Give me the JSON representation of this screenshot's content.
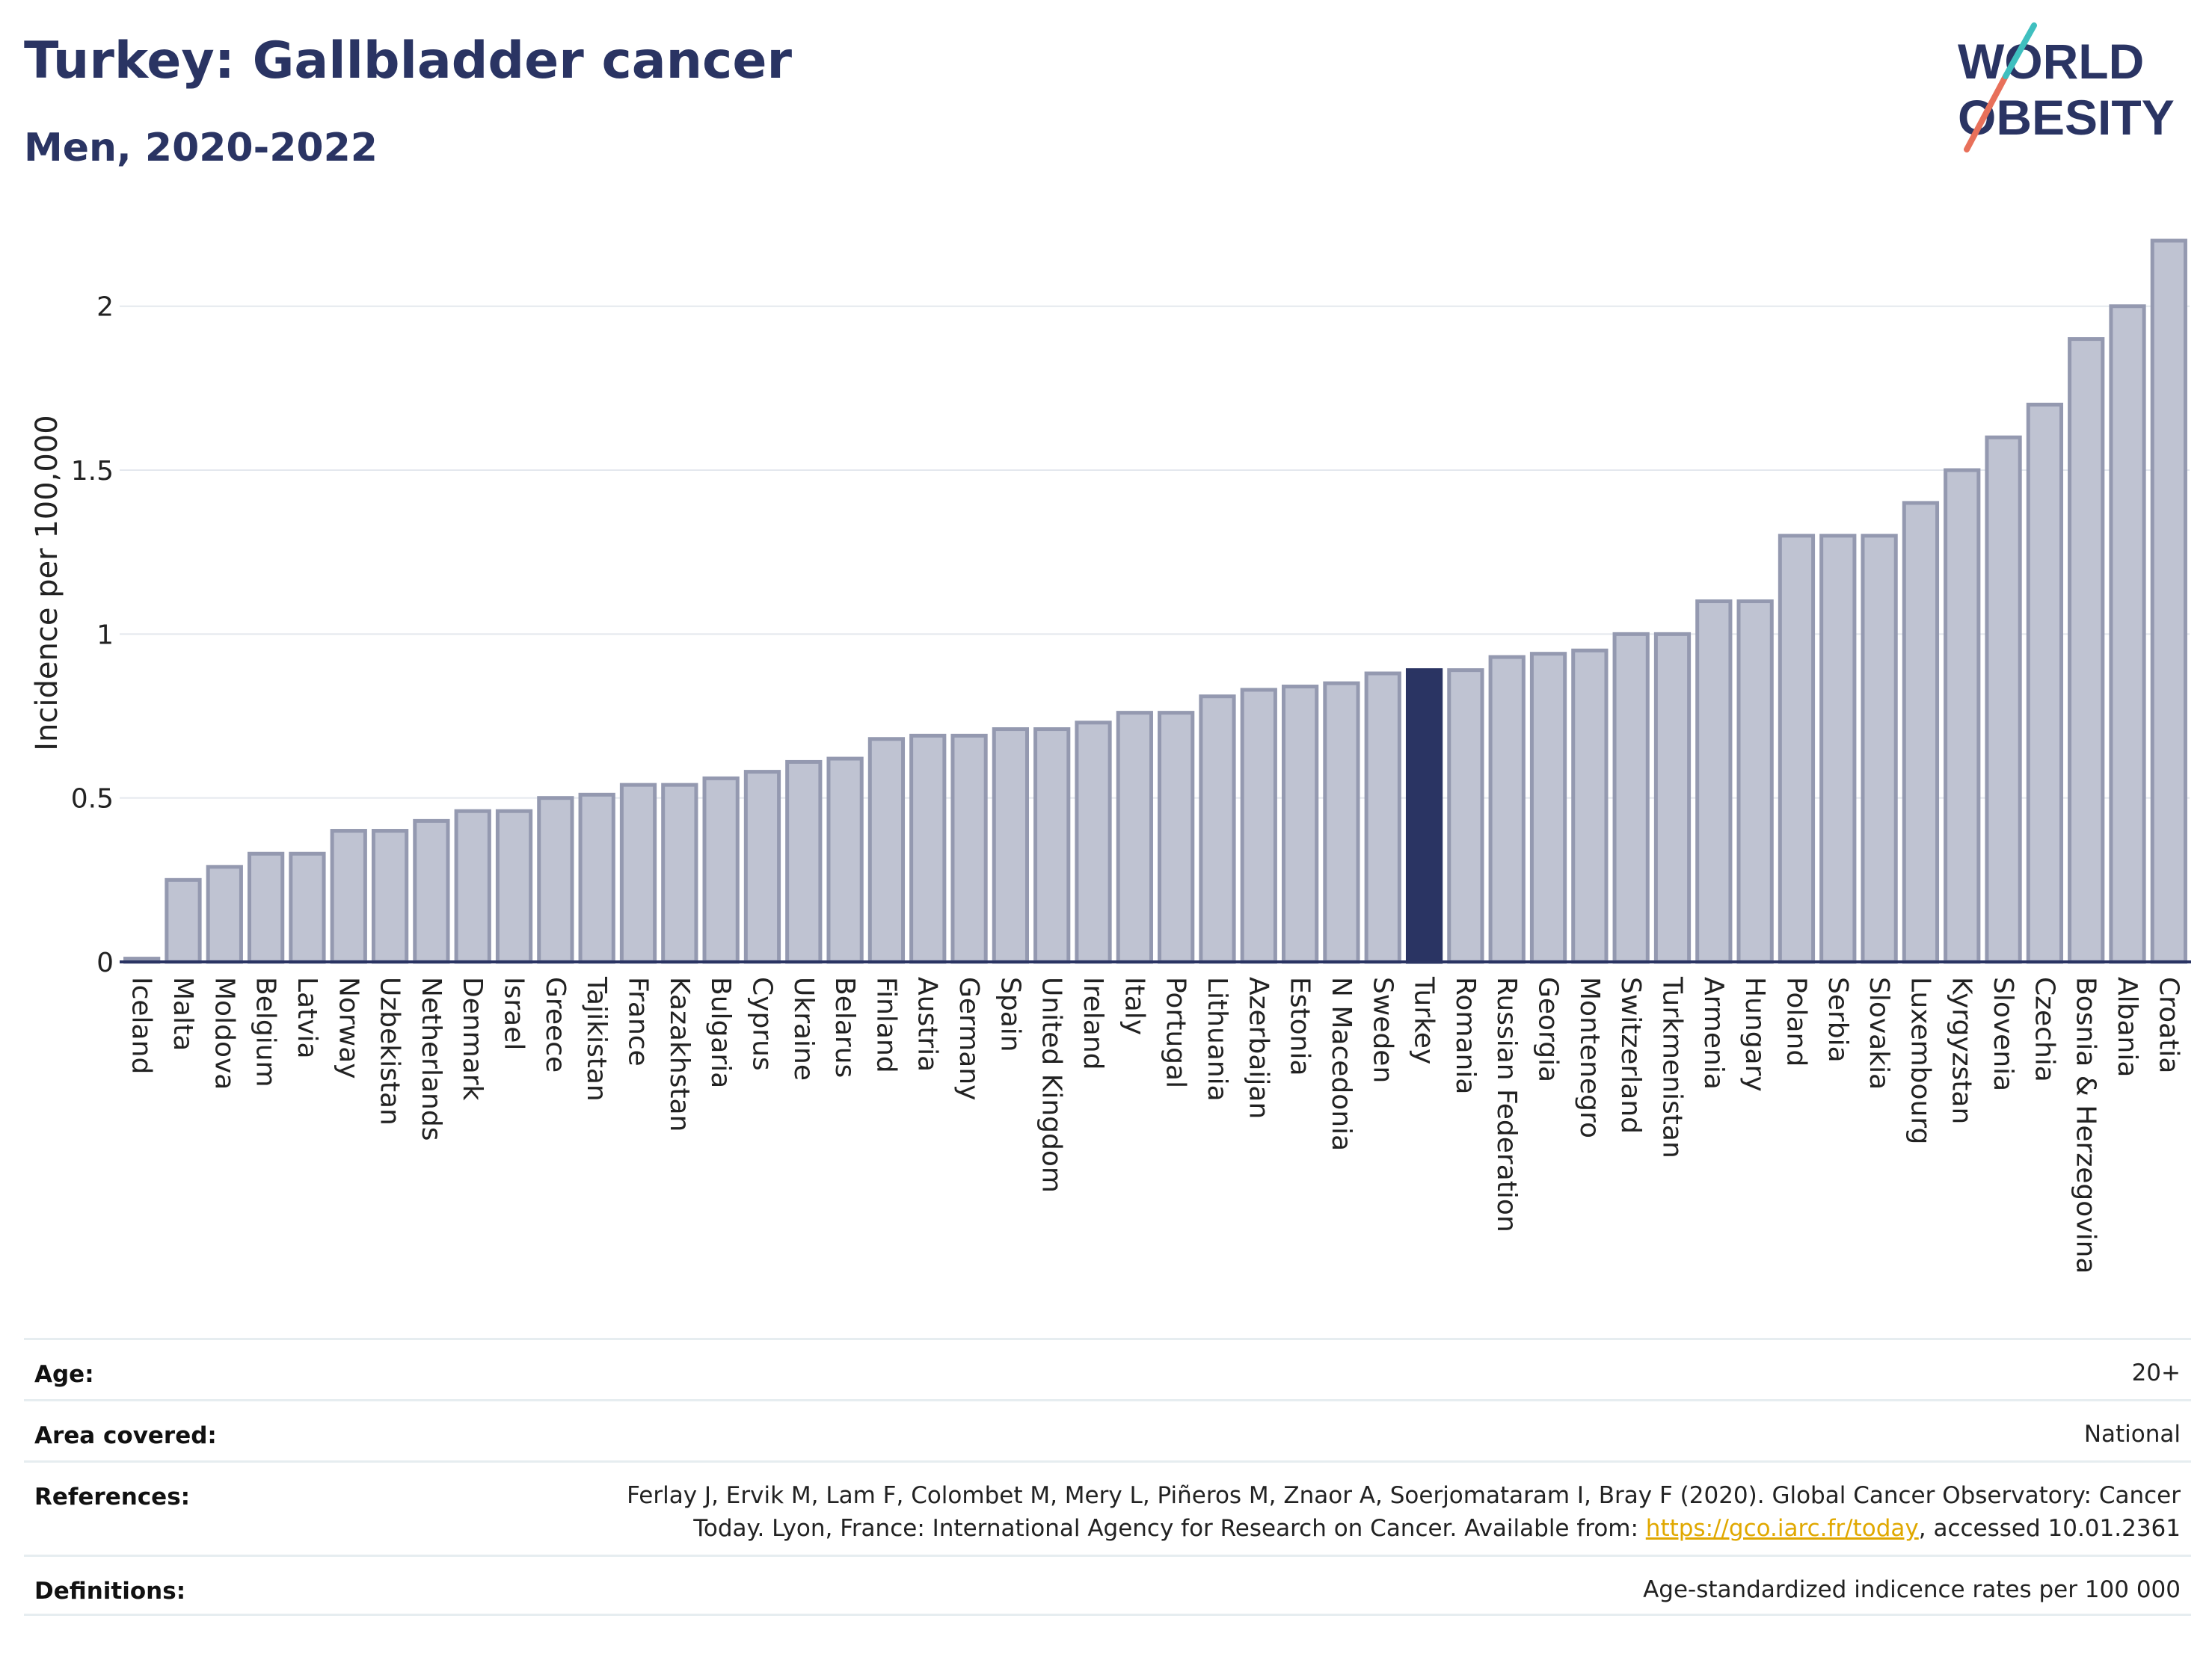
{
  "header": {
    "title": "Turkey: Gallbladder cancer",
    "subtitle": "Men, 2020-2022"
  },
  "logo": {
    "line1": "WORLD",
    "line2": "OBESITY"
  },
  "colors": {
    "bar": "#bfc3d2",
    "bar_stroke": "#9499b0",
    "highlight": "#2a3463",
    "grid": "#e4e8ee",
    "axis": "#2a3463"
  },
  "chart_data": {
    "type": "bar",
    "ylabel": "Incidence per 100,000",
    "ylim": [
      0,
      2.2
    ],
    "yticks": [
      0,
      0.5,
      1,
      1.5,
      2
    ],
    "ytick_labels": [
      "0",
      "0.5",
      "1",
      "1.5",
      "2"
    ],
    "grid": true,
    "highlight_category": "Turkey",
    "categories": [
      "Iceland",
      "Malta",
      "Moldova",
      "Belgium",
      "Latvia",
      "Norway",
      "Uzbekistan",
      "Netherlands",
      "Denmark",
      "Israel",
      "Greece",
      "Tajikistan",
      "France",
      "Kazakhstan",
      "Bulgaria",
      "Cyprus",
      "Ukraine",
      "Belarus",
      "Finland",
      "Austria",
      "Germany",
      "Spain",
      "United Kingdom",
      "Ireland",
      "Italy",
      "Portugal",
      "Lithuania",
      "Azerbaijan",
      "Estonia",
      "N Macedonia",
      "Sweden",
      "Turkey",
      "Romania",
      "Russian Federation",
      "Georgia",
      "Montenegro",
      "Switzerland",
      "Turkmenistan",
      "Armenia",
      "Hungary",
      "Poland",
      "Serbia",
      "Slovakia",
      "Luxembourg",
      "Kyrgyzstan",
      "Slovenia",
      "Czechia",
      "Bosnia & Herzegovina",
      "Albania",
      "Croatia"
    ],
    "values": [
      0.01,
      0.25,
      0.29,
      0.33,
      0.33,
      0.4,
      0.4,
      0.43,
      0.46,
      0.46,
      0.5,
      0.51,
      0.54,
      0.54,
      0.56,
      0.58,
      0.61,
      0.62,
      0.68,
      0.69,
      0.69,
      0.71,
      0.71,
      0.73,
      0.76,
      0.76,
      0.81,
      0.83,
      0.84,
      0.85,
      0.88,
      0.89,
      0.89,
      0.93,
      0.94,
      0.95,
      1.0,
      1.0,
      1.1,
      1.1,
      1.3,
      1.3,
      1.3,
      1.4,
      1.5,
      1.6,
      1.7,
      1.9,
      2.0,
      2.2
    ]
  },
  "meta": {
    "age_label": "Age:",
    "age_value": "20+",
    "area_label": "Area covered:",
    "area_value": "National",
    "references_label": "References:",
    "references_line1": "Ferlay J, Ervik M, Lam F, Colombet M, Mery L, Piñeros M, Znaor A, Soerjomataram I, Bray F (2020). Global Cancer Observatory: Cancer",
    "references_line2_pre": "Today. Lyon, France: International Agency for Research on Cancer. Available from: ",
    "references_link": "https://gco.iarc.fr/today",
    "references_line2_post": ", accessed 10.01.2361",
    "definitions_label": "Definitions:",
    "definitions_value": "Age-standardized indicence rates per 100 000"
  }
}
